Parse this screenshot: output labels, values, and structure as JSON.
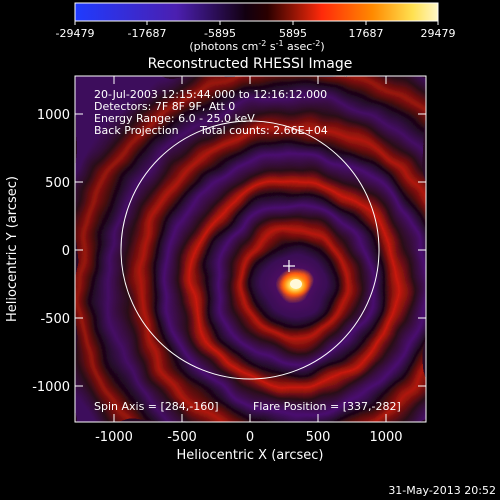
{
  "colorbar": {
    "tick_labels": [
      "-29479",
      "-17687",
      "-5895",
      "5895",
      "17687",
      "29479"
    ],
    "units_parts": {
      "prefix": "(photons cm",
      "sup1": "-2",
      "mid1": " s",
      "sup2": "-1",
      "mid2": " asec",
      "sup3": "-2",
      "suffix": ")"
    },
    "colors": {
      "min": "#1f3bff",
      "mid_dark": "#000000",
      "red": "#ff2a0a",
      "orange": "#ff8a00",
      "max": "#fff7c8"
    }
  },
  "plot": {
    "title": "Reconstructed RHESSI Image",
    "xlabel": "Heliocentric X (arcsec)",
    "ylabel": "Heliocentric Y (arcsec)",
    "xticks": [
      "-1000",
      "-500",
      "0",
      "500",
      "1000"
    ],
    "yticks": [
      "1000",
      "500",
      "0",
      "-500",
      "-1000"
    ]
  },
  "image_colors": {
    "background": "#2a0825",
    "violet": "#4a1070",
    "dark_red": "#6a1000",
    "red_ring": "#d51c10",
    "flare_core": "#fff4b0",
    "flare_mid": "#ffb020"
  },
  "annotations": {
    "time_range": "20-Jul-2003 12:15:44.000 to 12:16:12.000",
    "detectors": "Detectors: 7F 8F 9F, Att 0",
    "energy": "Energy Range: 6.0 - 25.0 keV",
    "method": "Back Projection",
    "counts": "Total counts: 2.66E+04",
    "spin_axis": "Spin Axis = [284,-160]",
    "flare_position": "Flare Position = [337,-282]"
  },
  "footer": {
    "timestamp": "31-May-2013 20:52"
  }
}
